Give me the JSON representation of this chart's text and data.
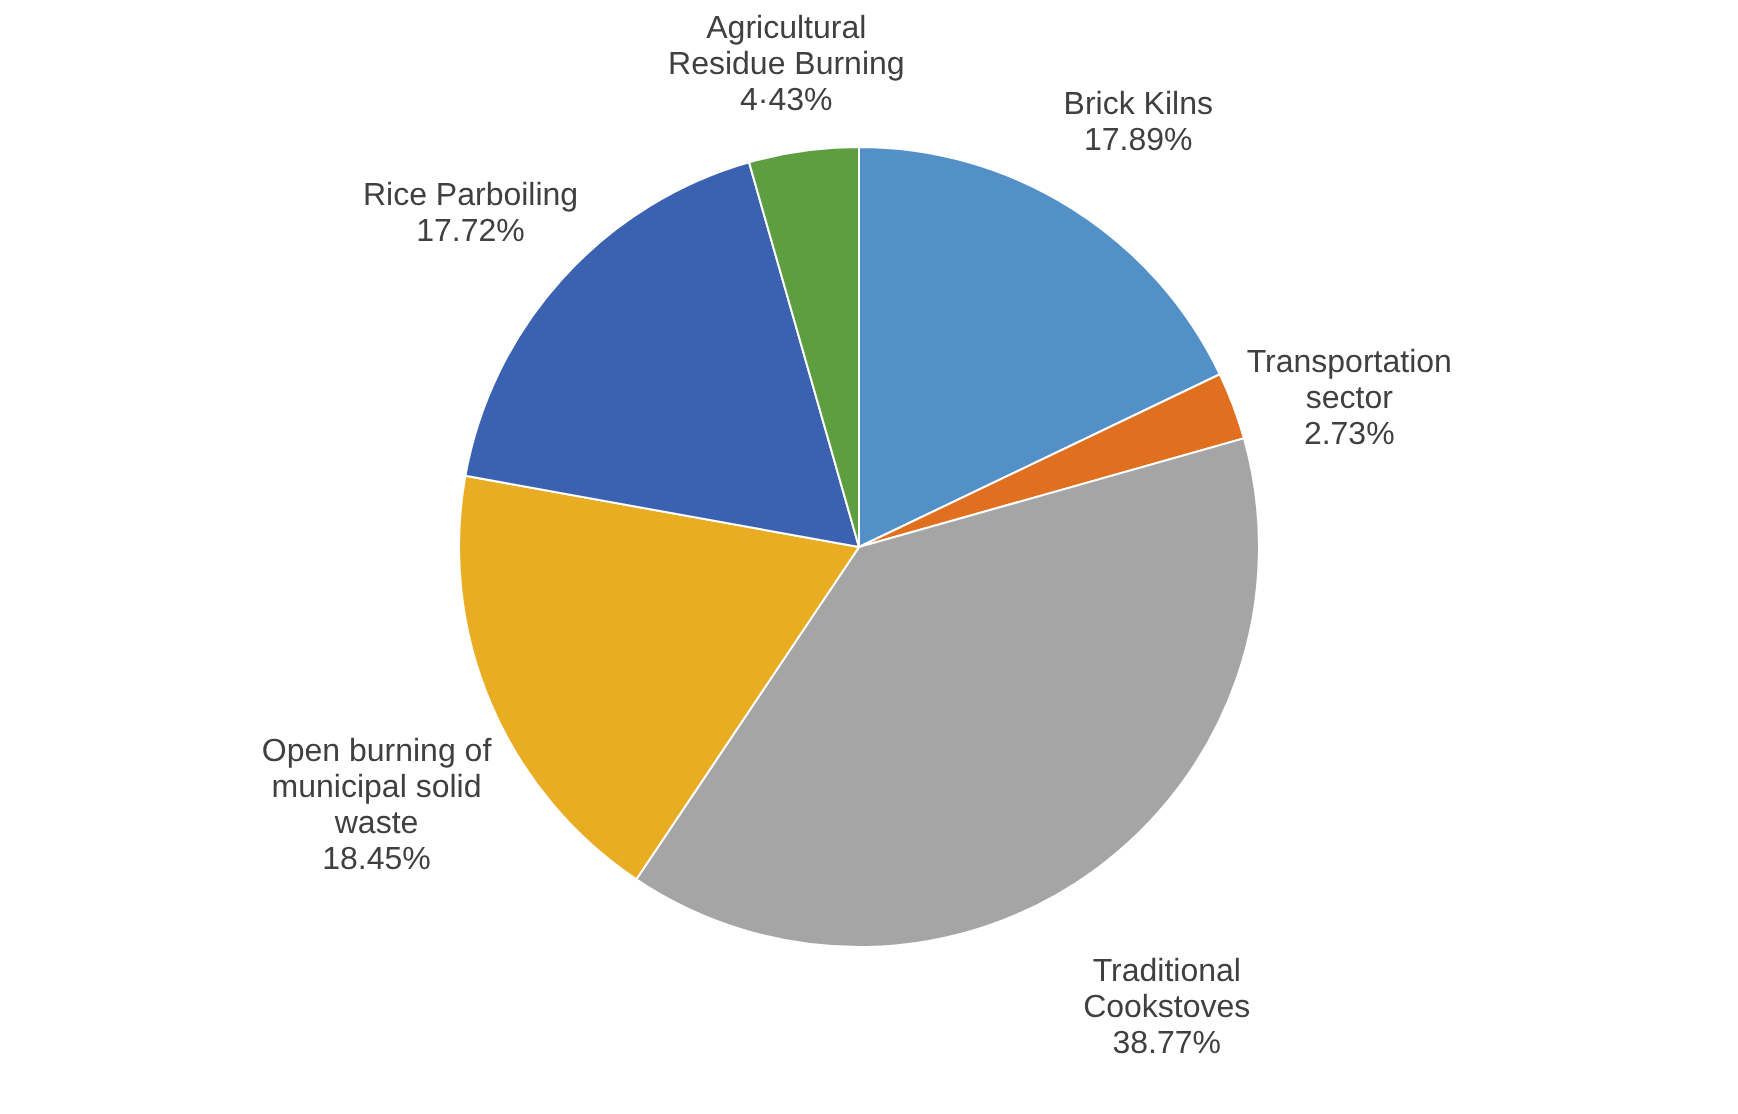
{
  "chart_data": {
    "type": "pie",
    "categories": [
      "Brick Kilns",
      "Transportation\nsector",
      "Traditional\nCookstoves",
      "Open burning of\nmunicipal solid\nwaste",
      "Rice Parboiling",
      "Agricultural\nResidue Burning"
    ],
    "values": [
      17.89,
      2.73,
      38.77,
      18.45,
      17.72,
      4.43
    ],
    "value_labels": [
      "17.89%",
      "2.73%",
      "38.77%",
      "18.45%",
      "17.72%",
      "4·43%"
    ],
    "colors": [
      "#5390c8",
      "#e07020",
      "#a5a5a5",
      "#e8ad22",
      "#3a62b0",
      "#5c9e40"
    ]
  }
}
